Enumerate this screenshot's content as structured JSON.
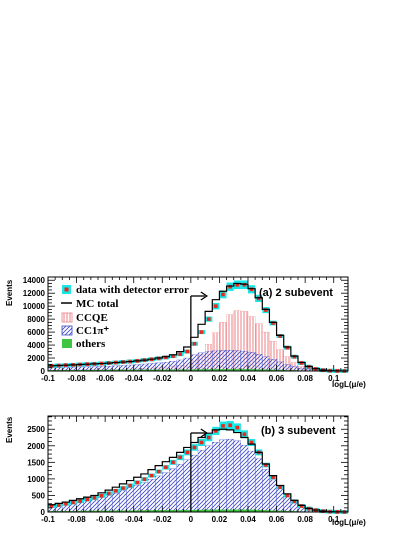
{
  "legend": {
    "data": "data with detector error",
    "mc": "MC total",
    "ccqe": "CCQE",
    "cc1pi": "CC1π⁺",
    "others": "others"
  },
  "colors": {
    "data_band": "#19e6e6",
    "data_marker": "#e8281f",
    "mc": "#000000",
    "ccqe": "#ee7f85",
    "cc1pi": "#3b46c8",
    "others": "#3fc53f"
  },
  "chart_data": [
    {
      "type": "bar",
      "label": "(a) 2 subevent",
      "xlabel": "logL(μ/e)",
      "ylabel": "Events",
      "xlim": [
        -0.1,
        0.11
      ],
      "ylim": [
        0,
        14500
      ],
      "xticks": [
        "-0.1",
        "-0.08",
        "-0.06",
        "-0.04",
        "-0.02",
        "0",
        "0.02",
        "0.04",
        "0.06",
        "0.08",
        "0.1"
      ],
      "yticks": [
        "0",
        "2000",
        "4000",
        "6000",
        "8000",
        "10000",
        "12000",
        "14000"
      ],
      "bin_start": -0.1,
      "bin_width": 0.005,
      "cut": 0,
      "series": [
        {
          "key": "mc",
          "values": [
            800,
            850,
            900,
            950,
            1000,
            1050,
            1100,
            1150,
            1220,
            1300,
            1380,
            1460,
            1560,
            1680,
            1820,
            2000,
            2200,
            2500,
            3000,
            3700,
            5200,
            7200,
            9200,
            11000,
            12300,
            13100,
            13500,
            13400,
            12700,
            11300,
            9500,
            7500,
            5500,
            3700,
            2300,
            1300,
            700,
            350,
            150,
            50,
            20,
            5
          ]
        },
        {
          "key": "data",
          "values": [
            800,
            850,
            900,
            950,
            1000,
            1050,
            1100,
            1150,
            1220,
            1300,
            1380,
            1460,
            1560,
            1680,
            1800,
            1950,
            2100,
            2300,
            2600,
            3000,
            4200,
            6000,
            8000,
            10000,
            11800,
            13000,
            13300,
            13300,
            12600,
            11200,
            9400,
            7400,
            5400,
            3600,
            2200,
            1250,
            650,
            320,
            130,
            40,
            15,
            5
          ]
        },
        {
          "key": "ccqe",
          "values": [
            150,
            160,
            170,
            180,
            190,
            200,
            210,
            220,
            240,
            260,
            290,
            320,
            360,
            410,
            480,
            560,
            650,
            760,
            900,
            1100,
            1600,
            2600,
            4100,
            5900,
            7500,
            8700,
            9300,
            9200,
            8400,
            7300,
            6000,
            4600,
            3300,
            2200,
            1300,
            700,
            370,
            180,
            80,
            30,
            10,
            3
          ]
        },
        {
          "key": "cc1pi",
          "values": [
            500,
            530,
            560,
            590,
            620,
            650,
            680,
            710,
            750,
            800,
            860,
            930,
            1000,
            1080,
            1160,
            1250,
            1350,
            1500,
            1700,
            2000,
            2500,
            2800,
            3000,
            3100,
            3200,
            3200,
            3150,
            3050,
            2900,
            2600,
            2200,
            1800,
            1400,
            1000,
            700,
            450,
            250,
            130,
            60,
            20,
            8,
            2
          ]
        },
        {
          "key": "others",
          "values": [
            120,
            125,
            130,
            135,
            140,
            145,
            150,
            155,
            160,
            165,
            170,
            175,
            180,
            185,
            190,
            195,
            200,
            205,
            210,
            215,
            225,
            235,
            245,
            255,
            262,
            265,
            265,
            260,
            250,
            235,
            215,
            190,
            160,
            130,
            100,
            70,
            45,
            25,
            12,
            5,
            2,
            1
          ]
        }
      ]
    },
    {
      "type": "bar",
      "label": "(b) 3 subevent",
      "xlabel": "logL(μ/e)",
      "ylabel": "Events",
      "xlim": [
        -0.1,
        0.11
      ],
      "ylim": [
        0,
        2900
      ],
      "xticks": [
        "-0.1",
        "-0.08",
        "-0.06",
        "-0.04",
        "-0.02",
        "0",
        "0.02",
        "0.04",
        "0.06",
        "0.08",
        "0.1"
      ],
      "yticks": [
        "0",
        "500",
        "1000",
        "1500",
        "2000",
        "2500"
      ],
      "bin_start": -0.1,
      "bin_width": 0.005,
      "cut": 0,
      "series": [
        {
          "key": "mc",
          "values": [
            220,
            260,
            300,
            350,
            400,
            450,
            500,
            580,
            660,
            750,
            850,
            950,
            1050,
            1150,
            1280,
            1400,
            1520,
            1650,
            1800,
            1950,
            2100,
            2250,
            2380,
            2480,
            2500,
            2480,
            2400,
            2250,
            2050,
            1800,
            1450,
            1100,
            800,
            550,
            350,
            200,
            110,
            60,
            30,
            10,
            5,
            2
          ]
        },
        {
          "key": "data",
          "values": [
            180,
            210,
            250,
            290,
            330,
            380,
            430,
            490,
            560,
            640,
            720,
            800,
            890,
            990,
            1100,
            1220,
            1350,
            1500,
            1650,
            1800,
            1950,
            2100,
            2250,
            2450,
            2600,
            2620,
            2550,
            2350,
            2100,
            1800,
            1420,
            1050,
            750,
            500,
            320,
            180,
            100,
            55,
            25,
            10,
            4,
            1
          ]
        },
        {
          "key": "ccqe",
          "values": [
            25,
            26,
            27,
            28,
            29,
            30,
            31,
            32,
            33,
            34,
            35,
            36,
            37,
            38,
            39,
            40,
            41,
            42,
            43,
            44,
            45,
            46,
            47,
            48,
            49,
            50,
            51,
            50,
            48,
            45,
            40,
            35,
            28,
            20,
            14,
            9,
            5,
            3,
            2,
            1,
            0,
            0
          ]
        },
        {
          "key": "cc1pi",
          "values": [
            160,
            190,
            220,
            260,
            300,
            340,
            380,
            440,
            500,
            570,
            650,
            730,
            810,
            890,
            990,
            1090,
            1190,
            1310,
            1440,
            1580,
            1720,
            1870,
            2000,
            2110,
            2180,
            2200,
            2150,
            2020,
            1840,
            1610,
            1290,
            970,
            700,
            480,
            300,
            170,
            90,
            50,
            25,
            8,
            4,
            1
          ]
        },
        {
          "key": "others",
          "values": [
            20,
            22,
            24,
            26,
            28,
            30,
            32,
            34,
            36,
            38,
            40,
            42,
            44,
            46,
            48,
            50,
            52,
            54,
            56,
            58,
            60,
            62,
            64,
            66,
            68,
            70,
            70,
            68,
            65,
            60,
            52,
            44,
            36,
            28,
            20,
            14,
            9,
            5,
            3,
            1,
            0,
            0
          ]
        }
      ]
    }
  ]
}
